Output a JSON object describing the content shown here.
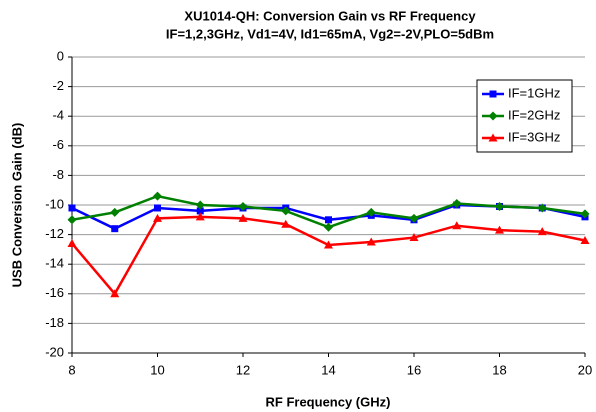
{
  "chart_data": {
    "type": "line",
    "title": "XU1014-QH: Conversion Gain vs RF Frequency",
    "subtitle": "IF=1,2,3GHz, Vd1=4V, Id1=65mA, Vg2=-2V,PLO=5dBm",
    "x_label": "RF Frequency (GHz)",
    "y_label": "USB Conversion Gain (dB)",
    "x": [
      8,
      9,
      10,
      11,
      12,
      13,
      14,
      15,
      16,
      17,
      18,
      19,
      20
    ],
    "series": [
      {
        "name": "IF=1GHz",
        "color": "#0000ff",
        "marker": "square",
        "values": [
          -10.2,
          -11.6,
          -10.2,
          -10.4,
          -10.2,
          -10.2,
          -11.0,
          -10.7,
          -11.0,
          -10.0,
          -10.1,
          -10.2,
          -10.8
        ]
      },
      {
        "name": "IF=2GHz",
        "color": "#008000",
        "marker": "diamond",
        "values": [
          -11.0,
          -10.5,
          -9.4,
          -10.0,
          -10.1,
          -10.4,
          -11.5,
          -10.5,
          -10.9,
          -9.9,
          -10.1,
          -10.2,
          -10.6
        ]
      },
      {
        "name": "IF=3GHz",
        "color": "#ff0000",
        "marker": "triangle",
        "values": [
          -12.6,
          -16.0,
          -10.9,
          -10.8,
          -10.9,
          -11.3,
          -12.7,
          -12.5,
          -12.2,
          -11.4,
          -11.7,
          -11.8,
          -12.4
        ]
      }
    ],
    "xlim": [
      8,
      20
    ],
    "xticks": [
      8,
      10,
      12,
      14,
      16,
      18,
      20
    ],
    "ylim": [
      -20,
      0
    ],
    "yticks": [
      0,
      -2,
      -4,
      -6,
      -8,
      -10,
      -12,
      -14,
      -16,
      -18,
      -20
    ],
    "grid": true,
    "legend": "upper right"
  }
}
